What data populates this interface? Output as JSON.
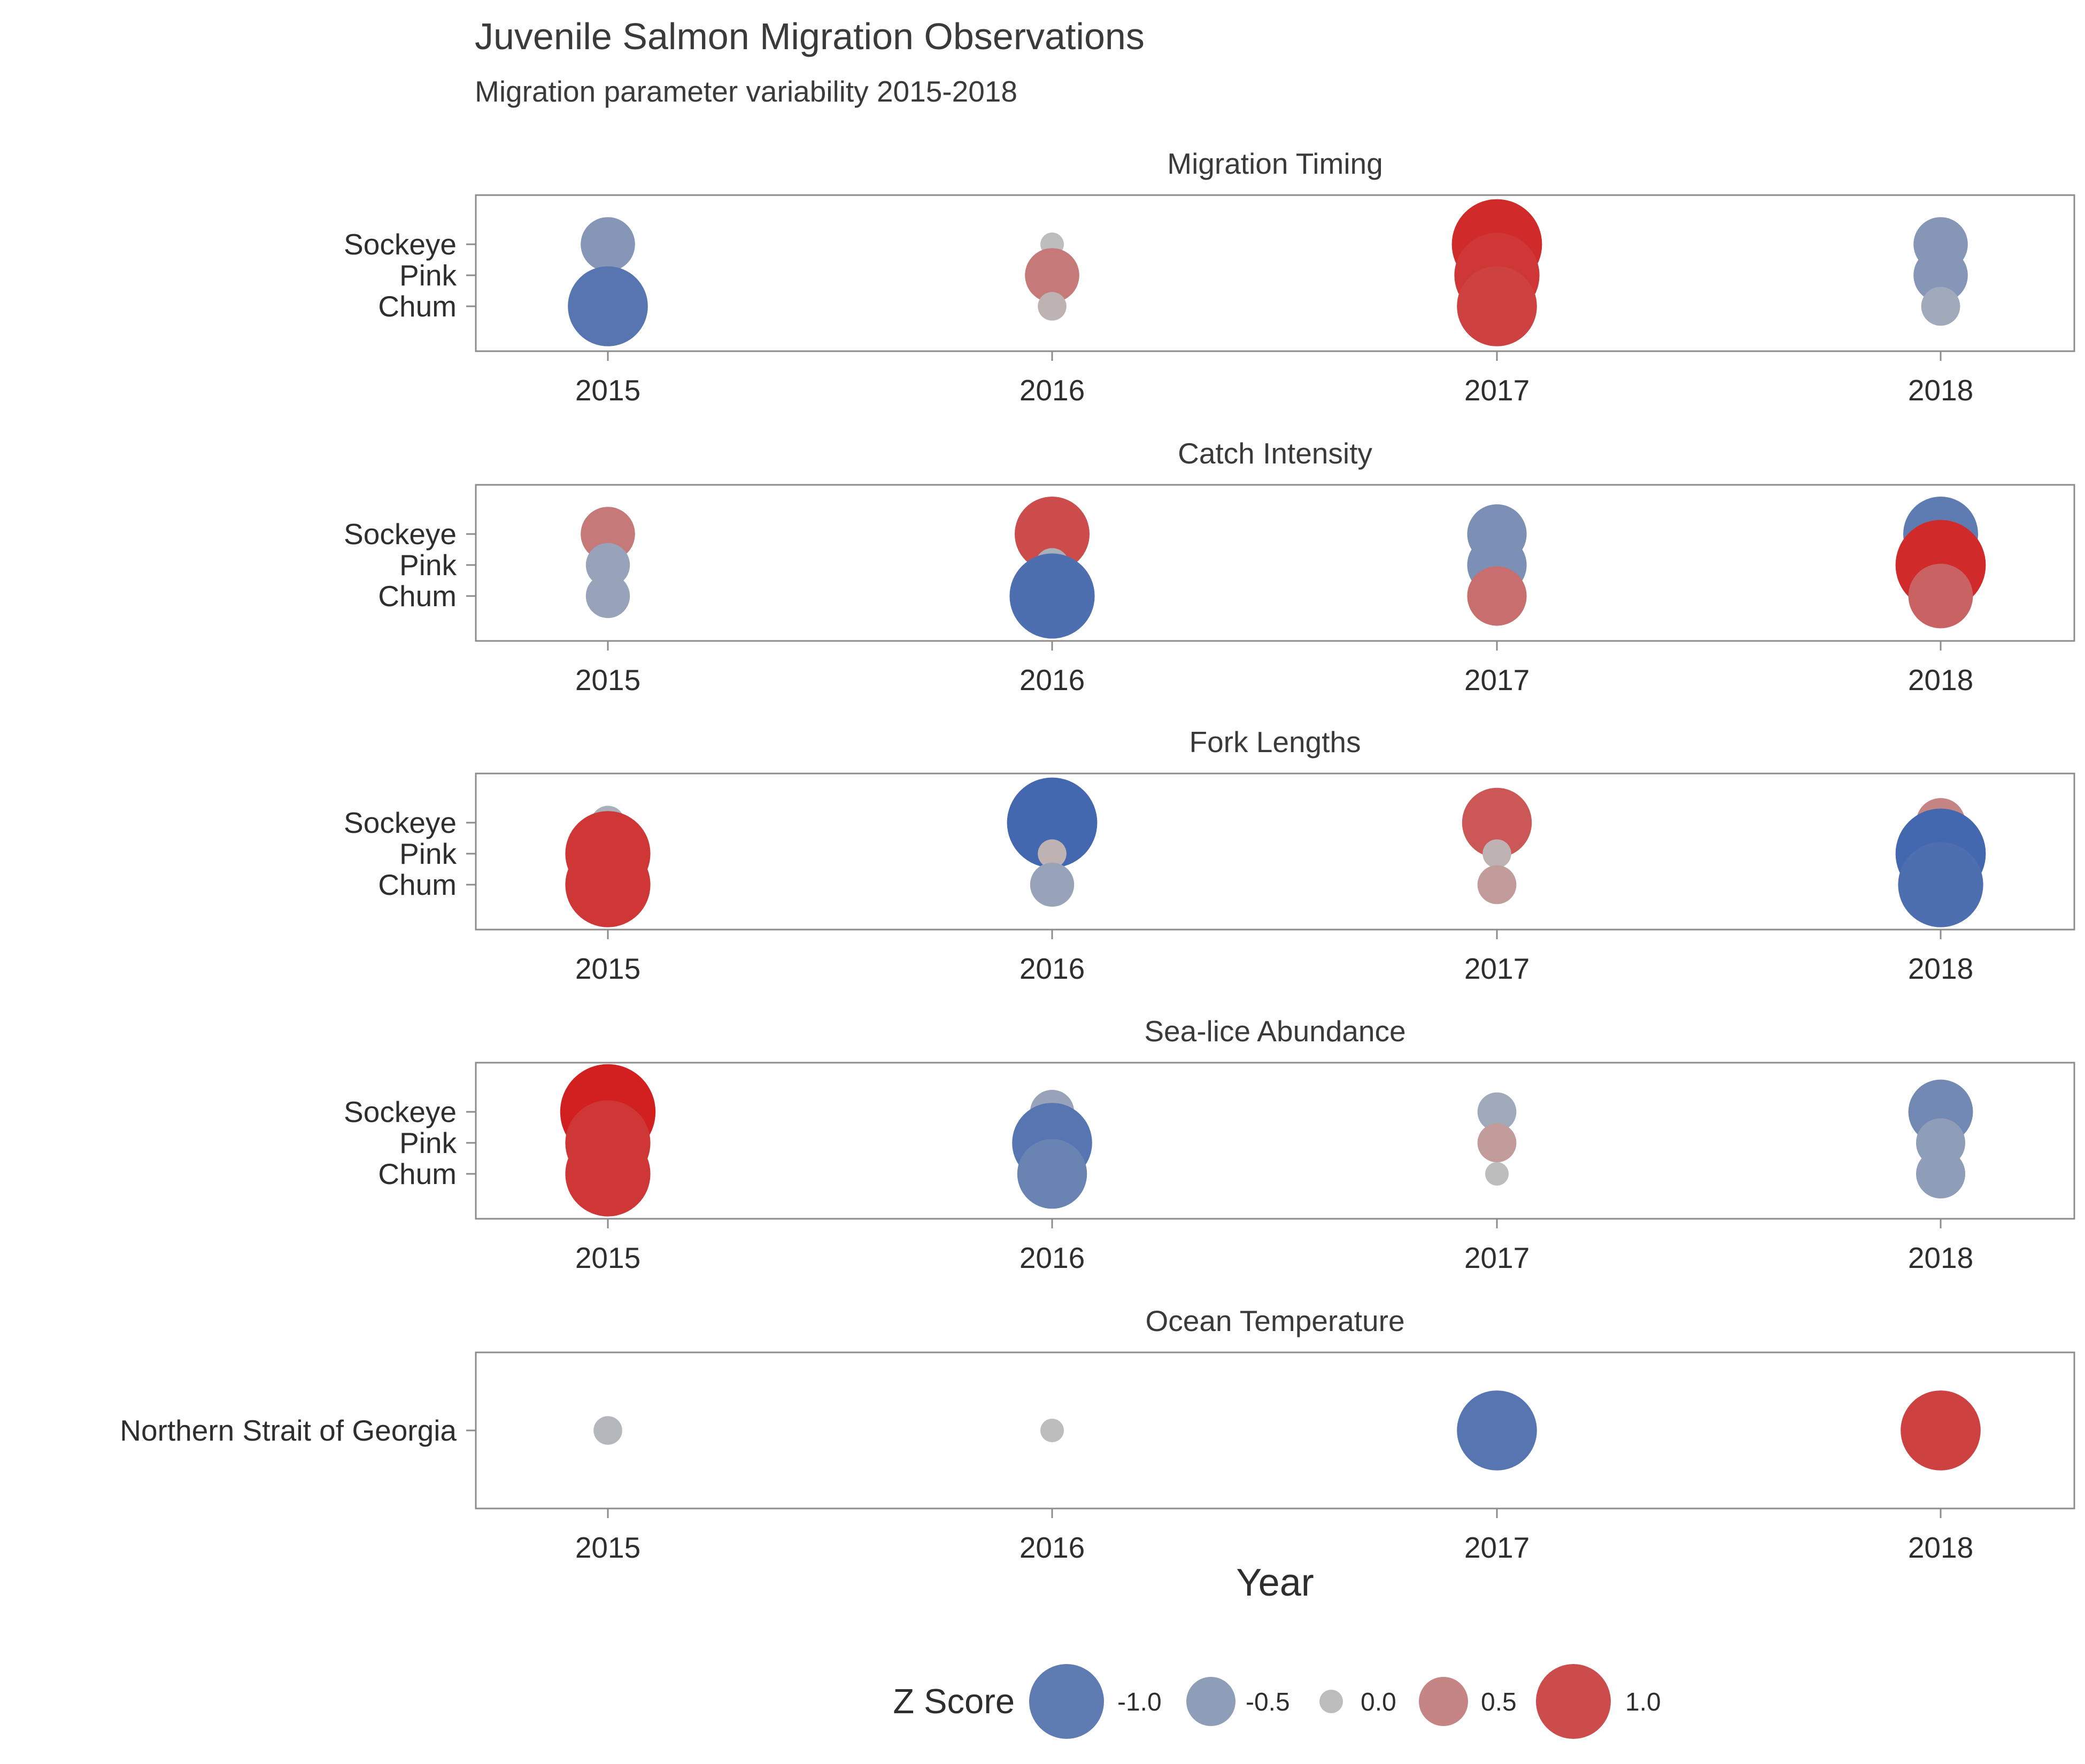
{
  "chart_data": {
    "type": "scatter",
    "title": "Juvenile Salmon Migration Observations",
    "subtitle": "Migration parameter variability 2015-2018",
    "xlabel": "Year",
    "years": [
      "2015",
      "2016",
      "2017",
      "2018"
    ],
    "grid": false,
    "legend": {
      "title": "Z Score",
      "position": "bottom",
      "entries": [
        {
          "label": "-1.0",
          "value": -1.0
        },
        {
          "label": "-0.5",
          "value": -0.5
        },
        {
          "label": "0.0",
          "value": 0.0
        },
        {
          "label": "0.5",
          "value": 0.5
        },
        {
          "label": "1.0",
          "value": 1.0
        }
      ]
    },
    "colors": {
      "negative": "#3a62ae",
      "neutral": "#bdbdbd",
      "positive": "#d21f1f"
    },
    "panels": [
      {
        "name": "Migration Timing",
        "categories": [
          "Sockeye",
          "Pink",
          "Chum"
        ],
        "z": [
          [
            -0.6,
            0.0,
            1.3,
            -0.6
          ],
          [
            null,
            0.6,
            1.2,
            -0.6
          ],
          [
            -1.1,
            0.1,
            1.1,
            -0.3
          ]
        ]
      },
      {
        "name": "Catch Intensity",
        "categories": [
          "Sockeye",
          "Pink",
          "Chum"
        ],
        "z": [
          [
            0.6,
            1.0,
            -0.7,
            -1.0
          ],
          [
            -0.4,
            -0.2,
            -0.7,
            1.3
          ],
          [
            -0.4,
            -1.2,
            0.7,
            0.8
          ]
        ]
      },
      {
        "name": "Fork Lengths",
        "categories": [
          "Sockeye",
          "Pink",
          "Chum"
        ],
        "z": [
          [
            -0.2,
            -1.3,
            0.9,
            0.5
          ],
          [
            1.2,
            0.1,
            0.1,
            -1.3
          ],
          [
            1.2,
            -0.4,
            0.3,
            -1.2
          ]
        ]
      },
      {
        "name": "Sea-lice Abundance",
        "categories": [
          "Sockeye",
          "Pink",
          "Chum"
        ],
        "z": [
          [
            1.4,
            -0.4,
            -0.3,
            -0.8
          ],
          [
            1.2,
            -1.1,
            0.3,
            -0.5
          ],
          [
            1.2,
            -0.9,
            0.0,
            -0.5
          ]
        ]
      },
      {
        "name": "Ocean Temperature",
        "categories": [
          "Northern Strait of Georgia"
        ],
        "z": [
          [
            -0.1,
            0.0,
            -1.1,
            1.1
          ]
        ]
      }
    ]
  }
}
